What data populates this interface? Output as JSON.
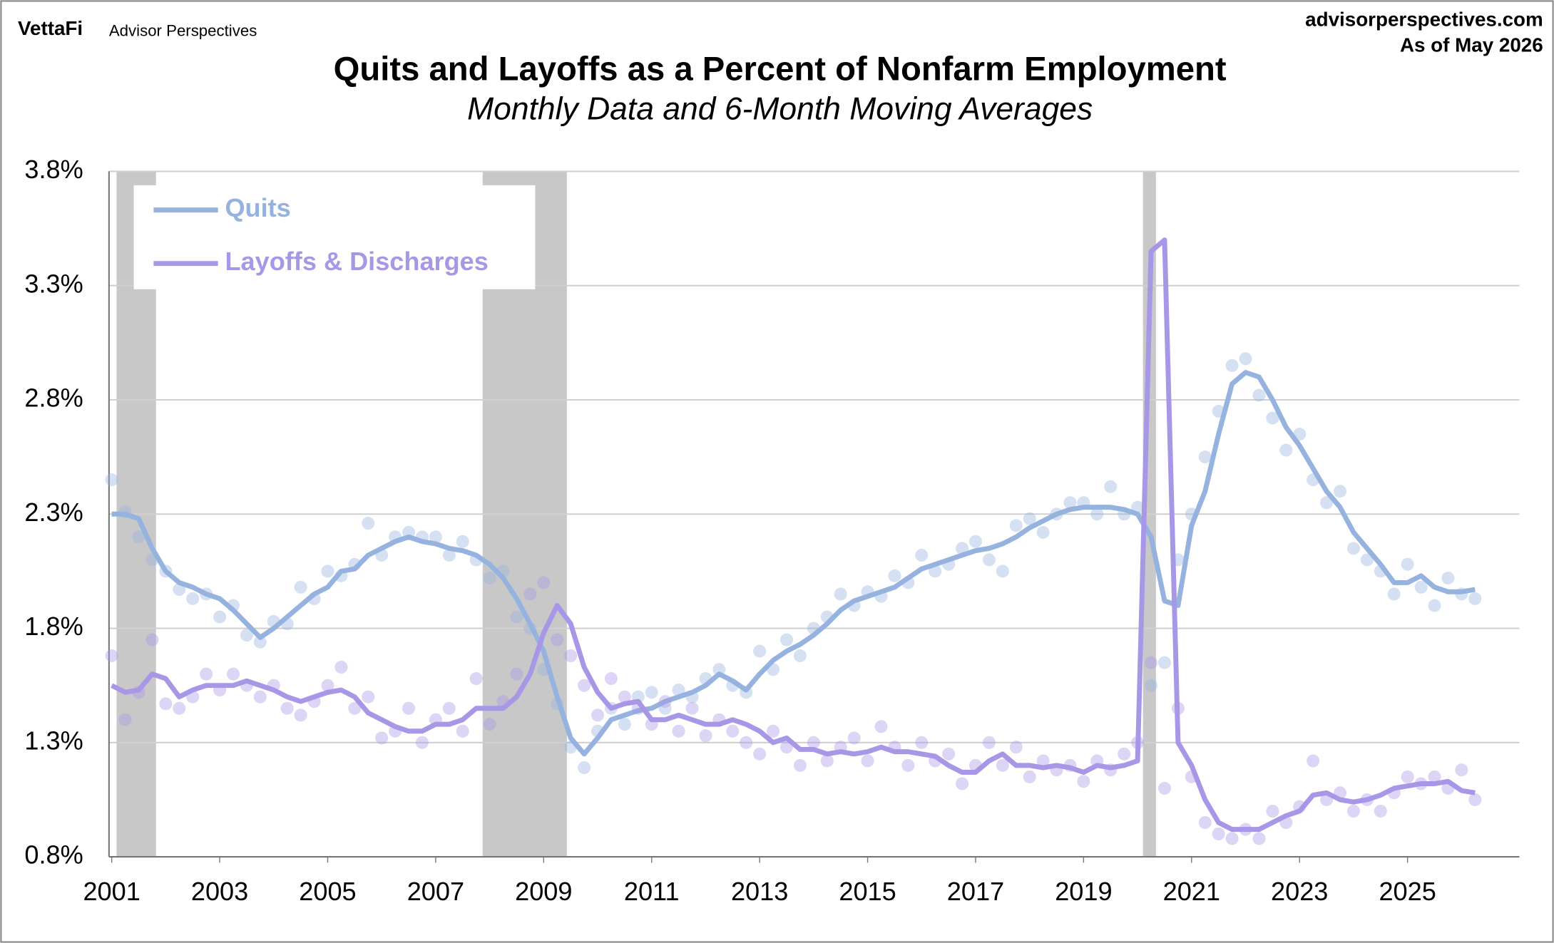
{
  "header": {
    "brand": "VettaFi",
    "brand_sub": "Advisor Perspectives",
    "site": "advisorperspectives.com",
    "as_of": "As of May 2026"
  },
  "chart_data": {
    "type": "line",
    "title": "Quits and Layoffs as a Percent of Nonfarm Employment",
    "subtitle": "Monthly Data and 6-Month Moving Averages",
    "x": [
      2001,
      2001.25,
      2001.5,
      2001.75,
      2002,
      2002.25,
      2002.5,
      2002.75,
      2003,
      2003.25,
      2003.5,
      2003.75,
      2004,
      2004.25,
      2004.5,
      2004.75,
      2005,
      2005.25,
      2005.5,
      2005.75,
      2006,
      2006.25,
      2006.5,
      2006.75,
      2007,
      2007.25,
      2007.5,
      2007.75,
      2008,
      2008.25,
      2008.5,
      2008.75,
      2009,
      2009.25,
      2009.5,
      2009.75,
      2010,
      2010.25,
      2010.5,
      2010.75,
      2011,
      2011.25,
      2011.5,
      2011.75,
      2012,
      2012.25,
      2012.5,
      2012.75,
      2013,
      2013.25,
      2013.5,
      2013.75,
      2014,
      2014.25,
      2014.5,
      2014.75,
      2015,
      2015.25,
      2015.5,
      2015.75,
      2016,
      2016.25,
      2016.5,
      2016.75,
      2017,
      2017.25,
      2017.5,
      2017.75,
      2018,
      2018.25,
      2018.5,
      2018.75,
      2019,
      2019.25,
      2019.5,
      2019.75,
      2020,
      2020.25,
      2020.5,
      2020.75,
      2021,
      2021.25,
      2021.5,
      2021.75,
      2022,
      2022.25,
      2022.5,
      2022.75,
      2023,
      2023.25,
      2023.5,
      2023.75,
      2024,
      2024.25,
      2024.5,
      2024.75,
      2025,
      2025.25,
      2025.5,
      2025.75,
      2026,
      2026.25
    ],
    "series": [
      {
        "name": "Quits",
        "color": "#95b3de",
        "values": [
          2.3,
          2.3,
          2.28,
          2.15,
          2.05,
          2.0,
          1.98,
          1.95,
          1.93,
          1.88,
          1.82,
          1.76,
          1.8,
          1.85,
          1.9,
          1.95,
          1.98,
          2.05,
          2.06,
          2.12,
          2.15,
          2.18,
          2.2,
          2.18,
          2.17,
          2.15,
          2.14,
          2.12,
          2.08,
          2.02,
          1.93,
          1.82,
          1.7,
          1.5,
          1.32,
          1.25,
          1.32,
          1.4,
          1.42,
          1.44,
          1.45,
          1.48,
          1.5,
          1.52,
          1.55,
          1.6,
          1.57,
          1.53,
          1.6,
          1.66,
          1.7,
          1.73,
          1.77,
          1.82,
          1.88,
          1.92,
          1.94,
          1.96,
          1.98,
          2.02,
          2.06,
          2.08,
          2.1,
          2.12,
          2.14,
          2.15,
          2.17,
          2.2,
          2.24,
          2.27,
          2.3,
          2.32,
          2.33,
          2.33,
          2.33,
          2.32,
          2.3,
          2.2,
          1.92,
          1.9,
          2.25,
          2.4,
          2.65,
          2.87,
          2.92,
          2.9,
          2.8,
          2.68,
          2.6,
          2.5,
          2.4,
          2.33,
          2.22,
          2.15,
          2.08,
          2.0,
          2.0,
          2.03,
          1.98,
          1.96,
          1.96,
          1.97
        ],
        "monthly_values": [
          2.45,
          2.31,
          2.2,
          2.1,
          2.05,
          1.97,
          1.93,
          1.95,
          1.85,
          1.9,
          1.77,
          1.74,
          1.83,
          1.82,
          1.98,
          1.93,
          2.05,
          2.03,
          2.08,
          2.26,
          2.12,
          2.2,
          2.22,
          2.2,
          2.2,
          2.12,
          2.18,
          2.1,
          2.02,
          2.05,
          1.85,
          1.8,
          1.62,
          1.47,
          1.28,
          1.19,
          1.35,
          1.45,
          1.38,
          1.5,
          1.52,
          1.45,
          1.53,
          1.5,
          1.58,
          1.62,
          1.55,
          1.52,
          1.7,
          1.62,
          1.75,
          1.68,
          1.8,
          1.85,
          1.95,
          1.9,
          1.96,
          1.94,
          2.03,
          2.0,
          2.12,
          2.05,
          2.08,
          2.15,
          2.18,
          2.1,
          2.05,
          2.25,
          2.28,
          2.22,
          2.3,
          2.35,
          2.35,
          2.3,
          2.42,
          2.3,
          2.33,
          1.55,
          1.65,
          2.1,
          2.3,
          2.55,
          2.75,
          2.95,
          2.98,
          2.82,
          2.72,
          2.58,
          2.65,
          2.45,
          2.35,
          2.4,
          2.15,
          2.1,
          2.05,
          1.95,
          2.08,
          1.98,
          1.9,
          2.02,
          1.95,
          1.93
        ]
      },
      {
        "name": "Layoffs & Discharges",
        "color": "#a797e6",
        "values": [
          1.55,
          1.52,
          1.53,
          1.6,
          1.58,
          1.5,
          1.53,
          1.55,
          1.55,
          1.55,
          1.57,
          1.55,
          1.53,
          1.5,
          1.48,
          1.5,
          1.52,
          1.53,
          1.5,
          1.43,
          1.4,
          1.37,
          1.35,
          1.35,
          1.38,
          1.38,
          1.4,
          1.45,
          1.45,
          1.45,
          1.5,
          1.6,
          1.78,
          1.9,
          1.82,
          1.63,
          1.52,
          1.45,
          1.47,
          1.48,
          1.4,
          1.4,
          1.42,
          1.4,
          1.38,
          1.38,
          1.4,
          1.38,
          1.35,
          1.3,
          1.32,
          1.27,
          1.27,
          1.25,
          1.26,
          1.25,
          1.26,
          1.28,
          1.26,
          1.26,
          1.25,
          1.24,
          1.2,
          1.17,
          1.17,
          1.22,
          1.25,
          1.2,
          1.2,
          1.19,
          1.2,
          1.19,
          1.17,
          1.2,
          1.19,
          1.2,
          1.22,
          3.45,
          3.5,
          1.3,
          1.2,
          1.05,
          0.95,
          0.92,
          0.92,
          0.92,
          0.95,
          0.98,
          1.0,
          1.07,
          1.08,
          1.05,
          1.04,
          1.05,
          1.07,
          1.1,
          1.11,
          1.12,
          1.12,
          1.13,
          1.09,
          1.08
        ],
        "monthly_values": [
          1.68,
          1.4,
          1.52,
          1.75,
          1.47,
          1.45,
          1.5,
          1.6,
          1.53,
          1.6,
          1.55,
          1.5,
          1.55,
          1.45,
          1.42,
          1.48,
          1.55,
          1.63,
          1.45,
          1.5,
          1.32,
          1.35,
          1.45,
          1.3,
          1.4,
          1.45,
          1.35,
          1.58,
          1.38,
          1.48,
          1.6,
          1.95,
          2.0,
          1.75,
          1.68,
          1.55,
          1.42,
          1.58,
          1.5,
          1.45,
          1.38,
          1.48,
          1.35,
          1.45,
          1.33,
          1.4,
          1.35,
          1.3,
          1.25,
          1.35,
          1.28,
          1.2,
          1.3,
          1.22,
          1.28,
          1.32,
          1.22,
          1.37,
          1.28,
          1.2,
          1.3,
          1.22,
          1.25,
          1.12,
          1.2,
          1.3,
          1.2,
          1.28,
          1.15,
          1.22,
          1.18,
          1.2,
          1.13,
          1.22,
          1.18,
          1.25,
          1.3,
          1.65,
          1.1,
          1.45,
          1.15,
          0.95,
          0.9,
          0.88,
          0.92,
          0.88,
          1.0,
          0.95,
          1.02,
          1.22,
          1.05,
          1.08,
          1.0,
          1.05,
          1.0,
          1.08,
          1.15,
          1.12,
          1.15,
          1.1,
          1.18,
          1.05
        ]
      }
    ],
    "shaded_ranges": [
      [
        2001.09,
        2001.82
      ],
      [
        2007.87,
        2009.43
      ],
      [
        2020.1,
        2020.34
      ]
    ],
    "shade_color": "#c8c8c8",
    "xlim": [
      2000.95,
      2027.07
    ],
    "xticks": [
      2001,
      2003,
      2005,
      2007,
      2009,
      2011,
      2013,
      2015,
      2017,
      2019,
      2021,
      2023,
      2025
    ],
    "ylim": [
      0.8,
      3.8
    ],
    "yticks": [
      {
        "value": 0.8,
        "label": "0.8%"
      },
      {
        "value": 1.3,
        "label": "1.3%"
      },
      {
        "value": 1.8,
        "label": "1.8%"
      },
      {
        "value": 2.3,
        "label": "2.3%"
      },
      {
        "value": 2.8,
        "label": "2.8%"
      },
      {
        "value": 3.3,
        "label": "3.3%"
      },
      {
        "value": 3.8,
        "label": "3.8%"
      }
    ],
    "grid": true,
    "legend": "upper left"
  }
}
